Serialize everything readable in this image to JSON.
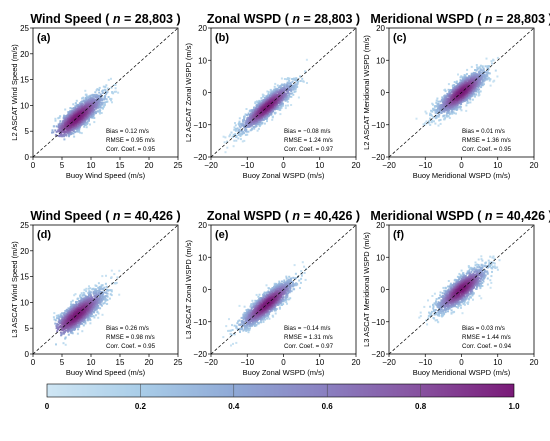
{
  "chart_data": [
    {
      "type": "scatter",
      "subtype": "density-scatter",
      "panel_label": "(a)",
      "title_var": "Wind Speed",
      "title_n": "28,803",
      "xlabel": "Buoy Wind Speed (m/s)",
      "ylabel": "L2 ASCAT Wind Speed (m/s)",
      "xlim": [
        0,
        25
      ],
      "ylim": [
        0,
        25
      ],
      "xticks": [
        "0",
        "5",
        "10",
        "15",
        "20",
        "25"
      ],
      "yticks": [
        "0",
        "5",
        "10",
        "15",
        "20",
        "25"
      ],
      "one_to_one_line": true,
      "center": [
        7.5,
        7.5
      ],
      "spread": [
        3.2,
        0.9
      ],
      "stats": {
        "bias": "Bias   =  0.12 m/s",
        "rmse": "RMSE = 0.95 m/s",
        "corr": "Corr. Coef. = 0.95"
      }
    },
    {
      "type": "scatter",
      "subtype": "density-scatter",
      "panel_label": "(b)",
      "title_var": "Zonal WSPD",
      "title_n": "28,803",
      "xlabel": "Buoy Zonal WSPD (m/s)",
      "ylabel": "L2 ASCAT Zonal WSPD (m/s)",
      "xlim": [
        -20,
        20
      ],
      "ylim": [
        -20,
        20
      ],
      "xticks": [
        "−20",
        "−10",
        "0",
        "10",
        "20"
      ],
      "yticks": [
        "−20",
        "−10",
        "0",
        "10",
        "20"
      ],
      "one_to_one_line": true,
      "center": [
        -4.5,
        -4.5
      ],
      "spread": [
        5.0,
        1.2
      ],
      "stats": {
        "bias": "Bias   = −0.08 m/s",
        "rmse": "RMSE = 1.24 m/s",
        "corr": "Corr. Coef. = 0.97"
      }
    },
    {
      "type": "scatter",
      "subtype": "density-scatter",
      "panel_label": "(c)",
      "title_var": "Meridional WSPD",
      "title_n": "28,803",
      "xlabel": "Buoy Meridional WSPD (m/s)",
      "ylabel": "L2 ASCAT Meridional WSPD (m/s)",
      "xlim": [
        -20,
        20
      ],
      "ylim": [
        -20,
        20
      ],
      "xticks": [
        "−20",
        "−10",
        "0",
        "10",
        "20"
      ],
      "yticks": [
        "−20",
        "−10",
        "0",
        "10",
        "20"
      ],
      "one_to_one_line": true,
      "center": [
        0,
        0
      ],
      "spread": [
        4.5,
        1.4
      ],
      "stats": {
        "bias": "Bias   =  0.01 m/s",
        "rmse": "RMSE = 1.36 m/s",
        "corr": "Corr. Coef. = 0.95"
      }
    },
    {
      "type": "scatter",
      "subtype": "density-scatter",
      "panel_label": "(d)",
      "title_var": "Wind Speed",
      "title_n": "40,426",
      "xlabel": "Buoy Wind Speed (m/s)",
      "ylabel": "L3 ASCAT Wind Speed (m/s)",
      "xlim": [
        0,
        25
      ],
      "ylim": [
        0,
        25
      ],
      "xticks": [
        "0",
        "5",
        "10",
        "15",
        "20",
        "25"
      ],
      "yticks": [
        "0",
        "5",
        "10",
        "15",
        "20",
        "25"
      ],
      "one_to_one_line": true,
      "center": [
        7.5,
        7.5
      ],
      "spread": [
        3.3,
        0.95
      ],
      "stats": {
        "bias": "Bias   =  0.26 m/s",
        "rmse": "RMSE = 0.98 m/s",
        "corr": "Corr. Coef. = 0.95"
      }
    },
    {
      "type": "scatter",
      "subtype": "density-scatter",
      "panel_label": "(e)",
      "title_var": "Zonal WSPD",
      "title_n": "40,426",
      "xlabel": "Buoy Zonal WSPD (m/s)",
      "ylabel": "L3 ASCAT Zonal WSPD (m/s)",
      "xlim": [
        -20,
        20
      ],
      "ylim": [
        -20,
        20
      ],
      "xticks": [
        "−20",
        "−10",
        "0",
        "10",
        "20"
      ],
      "yticks": [
        "−20",
        "−10",
        "0",
        "10",
        "20"
      ],
      "one_to_one_line": true,
      "center": [
        -4.5,
        -4.5
      ],
      "spread": [
        5.0,
        1.3
      ],
      "stats": {
        "bias": "Bias   = −0.14 m/s",
        "rmse": "RMSE = 1.31 m/s",
        "corr": "Corr. Coef. = 0.97"
      }
    },
    {
      "type": "scatter",
      "subtype": "density-scatter",
      "panel_label": "(f)",
      "title_var": "Meridional WSPD",
      "title_n": "40,426",
      "xlabel": "Buoy Meridional WSPD (m/s)",
      "ylabel": "L3 ASCAT Meridional WSPD (m/s)",
      "xlim": [
        -20,
        20
      ],
      "ylim": [
        -20,
        20
      ],
      "xticks": [
        "−20",
        "−10",
        "0",
        "10",
        "20"
      ],
      "yticks": [
        "−20",
        "−10",
        "0",
        "10",
        "20"
      ],
      "one_to_one_line": true,
      "center": [
        0,
        0
      ],
      "spread": [
        4.6,
        1.45
      ],
      "stats": {
        "bias": "Bias   =  0.03 m/s",
        "rmse": "RMSE = 1.44 m/s",
        "corr": "Corr. Coef. = 0.94"
      }
    }
  ],
  "colorbar": {
    "range": [
      0,
      1
    ],
    "ticks": [
      "0",
      "0.2",
      "0.4",
      "0.6",
      "0.8",
      "1.0"
    ],
    "colors": [
      "#cfe6f4",
      "#a9cde8",
      "#8fa9d6",
      "#8a7fc0",
      "#87519f",
      "#7a1a78"
    ]
  }
}
